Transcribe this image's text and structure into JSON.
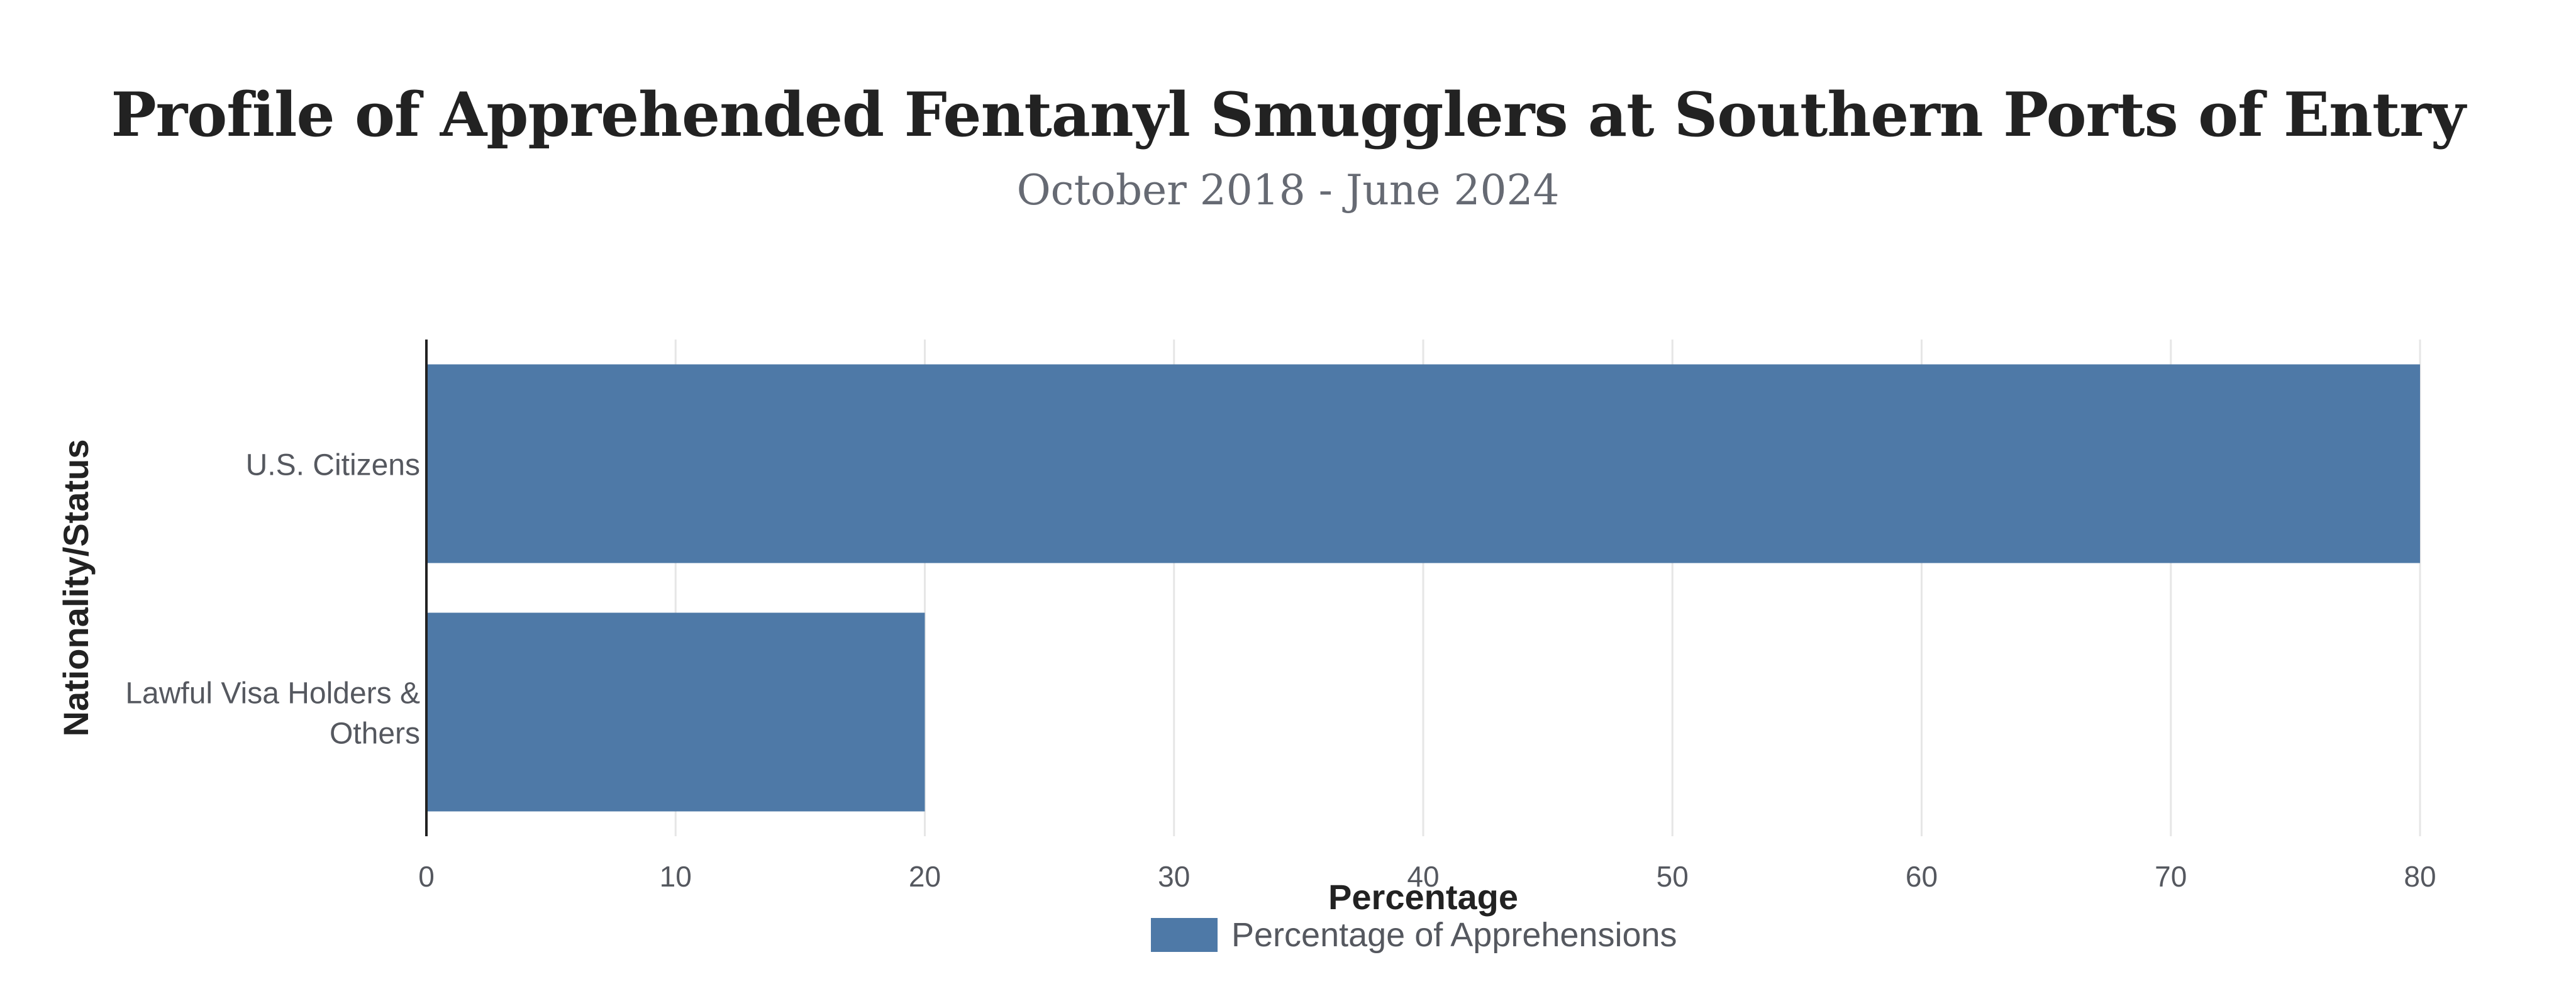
{
  "chart_data": {
    "type": "bar",
    "orientation": "horizontal",
    "title": "Profile of Apprehended Fentanyl Smugglers at Southern Ports of Entry",
    "subtitle": "October 2018 - June 2024",
    "xlabel": "Percentage",
    "ylabel": "Nationality/Status",
    "categories": [
      [
        "U.S. Citizens"
      ],
      [
        "Lawful Visa Holders &",
        "Others"
      ]
    ],
    "series": [
      {
        "name": "Percentage of Apprehensions",
        "values": [
          80,
          20
        ],
        "color": "#4e79a7"
      }
    ],
    "xlim": [
      0,
      80
    ],
    "xticks": [
      0,
      10,
      20,
      30,
      40,
      50,
      60,
      70,
      80
    ],
    "grid": true,
    "legend_position": "bottom-center"
  }
}
